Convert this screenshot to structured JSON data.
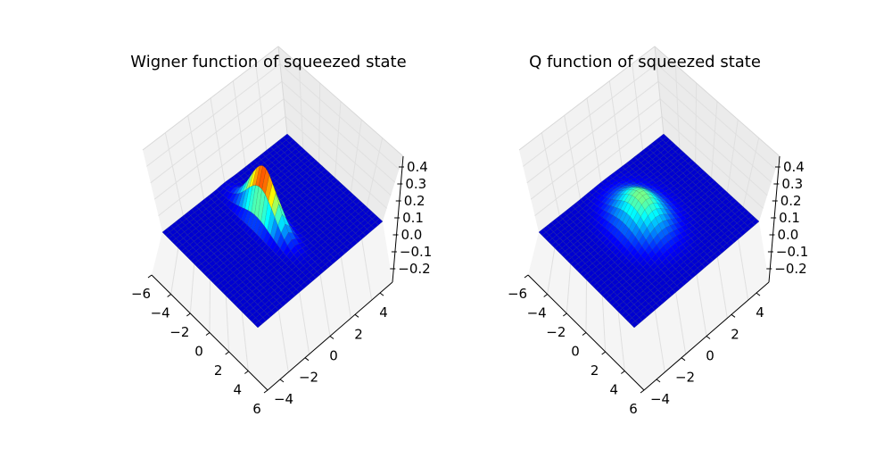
{
  "figure": {
    "background": "#ffffff",
    "pane_color": "#f2f2f2",
    "grid_color": "#e0e0e0",
    "colormap": "jet"
  },
  "chart_data": [
    {
      "type": "surface3d",
      "title": "Wigner function of squeezed state",
      "xticks": [
        "−6",
        "−4",
        "−2",
        "0",
        "2",
        "4",
        "6"
      ],
      "yticks": [
        "−4",
        "−2",
        "0",
        "2",
        "4"
      ],
      "zticks": [
        "−0.2",
        "−0.1",
        "0.0",
        "0.1",
        "0.2",
        "0.3",
        "0.4"
      ],
      "xlim": [
        -6,
        6
      ],
      "ylim": [
        -5,
        5
      ],
      "zlim": [
        -0.25,
        0.45
      ],
      "peak_value": 0.32,
      "peak_center": [
        -1.0,
        0.0
      ],
      "width_x": 1.7,
      "width_y": 0.38,
      "grid": true,
      "view": {
        "elev_deg": 55,
        "azim_deg": -45
      }
    },
    {
      "type": "surface3d",
      "title": "Q function of squeezed state",
      "xticks": [
        "−6",
        "−4",
        "−2",
        "0",
        "2",
        "4",
        "6"
      ],
      "yticks": [
        "−4",
        "−2",
        "0",
        "2",
        "4"
      ],
      "zticks": [
        "−0.2",
        "−0.1",
        "0.0",
        "0.1",
        "0.2",
        "0.3",
        "0.4"
      ],
      "xlim": [
        -6,
        6
      ],
      "ylim": [
        -5,
        5
      ],
      "zlim": [
        -0.25,
        0.45
      ],
      "peak_value": 0.16,
      "peak_center": [
        -1.0,
        0.0
      ],
      "width_x": 1.9,
      "width_y": 1.0,
      "grid": true,
      "view": {
        "elev_deg": 55,
        "azim_deg": -45
      }
    }
  ]
}
